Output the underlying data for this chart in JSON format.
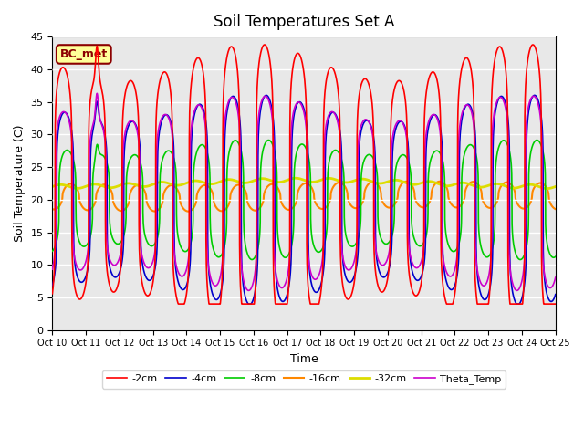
{
  "title": "Soil Temperatures Set A",
  "xlabel": "Time",
  "ylabel": "Soil Temperature (C)",
  "ylim": [
    0,
    45
  ],
  "xlim": [
    0,
    15
  ],
  "plot_bg_color": "#e8e8e8",
  "series": {
    "-2cm": {
      "color": "#ff0000",
      "lw": 1.2
    },
    "-4cm": {
      "color": "#0000cc",
      "lw": 1.2
    },
    "-8cm": {
      "color": "#00cc00",
      "lw": 1.2
    },
    "-16cm": {
      "color": "#ff8800",
      "lw": 1.5
    },
    "-32cm": {
      "color": "#dddd00",
      "lw": 2.0
    },
    "Theta_Temp": {
      "color": "#cc00cc",
      "lw": 1.2
    }
  },
  "x_tick_labels": [
    "Oct 10",
    "Oct 11",
    "Oct 12",
    "Oct 13",
    "Oct 14",
    "Oct 15",
    "Oct 16",
    "Oct 17",
    "Oct 18",
    "Oct 19",
    "Oct 20",
    "Oct 21",
    "Oct 22",
    "Oct 23",
    "Oct 24",
    "Oct 25"
  ],
  "annotation": {
    "text": "BC_met",
    "fontsize": 9,
    "color": "#8B0000",
    "bgcolor": "#ffff99",
    "edgecolor": "#8B0000"
  }
}
